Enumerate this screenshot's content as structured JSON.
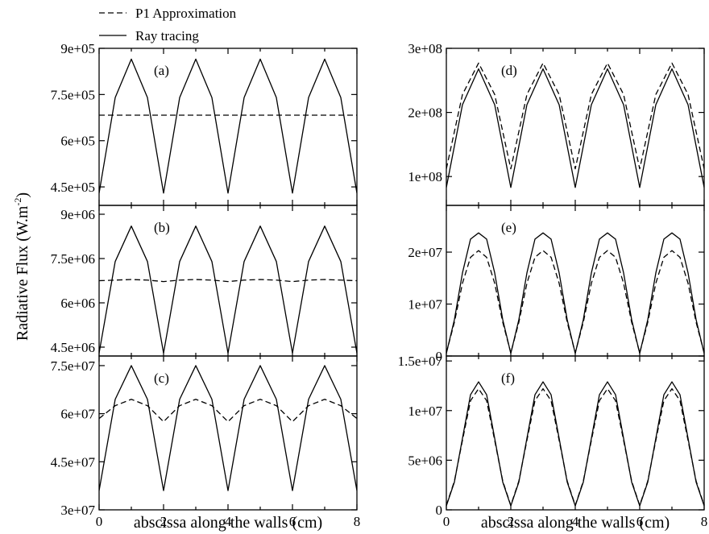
{
  "legend": [
    {
      "label": "P1 Approximation",
      "style": "dashed"
    },
    {
      "label": "Ray tracing",
      "style": "solid"
    }
  ],
  "ylabel": {
    "main": "Radiative Flux (W.m",
    "sup": "-2",
    "tail": ")"
  },
  "xlabel": "abscissa along the walls (cm)",
  "x_ticks": [
    "0",
    "2",
    "4",
    "6",
    "8"
  ],
  "chart_data": [
    {
      "id": "a",
      "type": "line",
      "panel_label": "(a)",
      "xlim": [
        0,
        8
      ],
      "ylim": [
        390000,
        900000
      ],
      "y_ticks": [
        {
          "v": 450000,
          "label": "4.5e+05"
        },
        {
          "v": 600000,
          "label": "6e+05"
        },
        {
          "v": 750000,
          "label": "7.5e+05"
        },
        {
          "v": 900000,
          "label": "9e+05"
        }
      ],
      "series": [
        {
          "name": "Ray tracing",
          "style": "solid",
          "x": [
            0,
            0.5,
            1,
            1.5,
            2,
            2.5,
            3,
            3.5,
            4,
            4.5,
            5,
            5.5,
            6,
            6.5,
            7,
            7.5,
            8
          ],
          "y": [
            430000,
            740000,
            865000,
            740000,
            430000,
            740000,
            865000,
            740000,
            430000,
            740000,
            865000,
            740000,
            430000,
            740000,
            865000,
            740000,
            430000
          ]
        },
        {
          "name": "P1 Approximation",
          "style": "dashed",
          "x": [
            0,
            8
          ],
          "y": [
            683000,
            683000
          ]
        }
      ]
    },
    {
      "id": "b",
      "type": "line",
      "panel_label": "(b)",
      "xlim": [
        0,
        8
      ],
      "ylim": [
        4200000,
        9300000
      ],
      "y_ticks": [
        {
          "v": 4500000,
          "label": "4.5e+06"
        },
        {
          "v": 6000000,
          "label": "6e+06"
        },
        {
          "v": 7500000,
          "label": "7.5e+06"
        },
        {
          "v": 9000000,
          "label": "9e+06"
        }
      ],
      "series": [
        {
          "name": "Ray tracing",
          "style": "solid",
          "x": [
            0,
            0.5,
            1,
            1.5,
            2,
            2.5,
            3,
            3.5,
            4,
            4.5,
            5,
            5.5,
            6,
            6.5,
            7,
            7.5,
            8
          ],
          "y": [
            4300000,
            7400000,
            8600000,
            7400000,
            4300000,
            7400000,
            8600000,
            7400000,
            4300000,
            7400000,
            8600000,
            7400000,
            4300000,
            7400000,
            8600000,
            7400000,
            4300000
          ]
        },
        {
          "name": "P1 Approximation",
          "style": "dashed",
          "x": [
            0,
            0.5,
            1,
            1.5,
            2,
            2.5,
            3,
            3.5,
            4,
            4.5,
            5,
            5.5,
            6,
            6.5,
            7,
            7.5,
            8
          ],
          "y": [
            6750000,
            6770000,
            6790000,
            6770000,
            6720000,
            6770000,
            6790000,
            6770000,
            6720000,
            6770000,
            6790000,
            6770000,
            6720000,
            6770000,
            6790000,
            6770000,
            6750000
          ]
        }
      ]
    },
    {
      "id": "c",
      "type": "line",
      "panel_label": "(c)",
      "xlim": [
        0,
        8
      ],
      "ylim": [
        30000000,
        78000000
      ],
      "y_ticks": [
        {
          "v": 30000000,
          "label": "3e+07"
        },
        {
          "v": 45000000,
          "label": "4.5e+07"
        },
        {
          "v": 60000000,
          "label": "6e+07"
        },
        {
          "v": 75000000,
          "label": "7.5e+07"
        }
      ],
      "series": [
        {
          "name": "Ray tracing",
          "style": "solid",
          "x": [
            0,
            0.5,
            1,
            1.5,
            2,
            2.5,
            3,
            3.5,
            4,
            4.5,
            5,
            5.5,
            6,
            6.5,
            7,
            7.5,
            8
          ],
          "y": [
            36000000,
            64500000,
            75000000,
            64500000,
            36000000,
            64500000,
            75000000,
            64500000,
            36000000,
            64500000,
            75000000,
            64500000,
            36000000,
            64500000,
            75000000,
            64500000,
            36000000
          ]
        },
        {
          "name": "P1 Approximation",
          "style": "dashed",
          "x": [
            0,
            0.5,
            1,
            1.5,
            2,
            2.5,
            3,
            3.5,
            4,
            4.5,
            5,
            5.5,
            6,
            6.5,
            7,
            7.5,
            8
          ],
          "y": [
            58500000,
            62500000,
            64500000,
            62500000,
            57500000,
            62500000,
            64500000,
            62500000,
            57500000,
            62500000,
            64500000,
            62500000,
            57500000,
            62500000,
            64500000,
            62500000,
            58500000
          ]
        }
      ]
    },
    {
      "id": "d",
      "type": "line",
      "panel_label": "(d)",
      "xlim": [
        0,
        8
      ],
      "ylim": [
        55000000,
        300000000
      ],
      "y_ticks": [
        {
          "v": 100000000,
          "label": "1e+08"
        },
        {
          "v": 200000000,
          "label": "2e+08"
        },
        {
          "v": 300000000,
          "label": "3e+08"
        }
      ],
      "series": [
        {
          "name": "Ray tracing",
          "style": "solid",
          "x": [
            0,
            0.5,
            1,
            1.5,
            2,
            2.5,
            3,
            3.5,
            4,
            4.5,
            5,
            5.5,
            6,
            6.5,
            7,
            7.5,
            8
          ],
          "y": [
            83000000,
            212000000,
            268000000,
            212000000,
            83000000,
            212000000,
            268000000,
            212000000,
            83000000,
            212000000,
            268000000,
            212000000,
            83000000,
            212000000,
            268000000,
            212000000,
            83000000
          ]
        },
        {
          "name": "P1 Approximation",
          "style": "dashed",
          "x": [
            0,
            0.5,
            1,
            1.5,
            2,
            2.5,
            3,
            3.5,
            4,
            4.5,
            5,
            5.5,
            6,
            6.5,
            7,
            7.5,
            8
          ],
          "y": [
            112000000,
            228000000,
            277000000,
            228000000,
            112000000,
            228000000,
            277000000,
            228000000,
            112000000,
            228000000,
            277000000,
            228000000,
            112000000,
            228000000,
            277000000,
            228000000,
            112000000
          ]
        }
      ]
    },
    {
      "id": "e",
      "type": "line",
      "panel_label": "(e)",
      "xlim": [
        0,
        8
      ],
      "ylim": [
        0,
        29000000
      ],
      "y_ticks": [
        {
          "v": 0,
          "label": "0"
        },
        {
          "v": 10000000,
          "label": "1e+07"
        },
        {
          "v": 20000000,
          "label": "2e+07"
        }
      ],
      "series": [
        {
          "name": "Ray tracing",
          "style": "solid",
          "x": [
            0,
            0.25,
            0.5,
            0.75,
            1,
            1.25,
            1.5,
            1.75,
            2,
            2.25,
            2.5,
            2.75,
            3,
            3.25,
            3.5,
            3.75,
            4,
            4.25,
            4.5,
            4.75,
            5,
            5.25,
            5.5,
            5.75,
            6,
            6.25,
            6.5,
            6.75,
            7,
            7.25,
            7.5,
            7.75,
            8
          ],
          "y": [
            500000,
            7000000,
            16000000,
            22500000,
            23700000,
            22500000,
            16000000,
            7000000,
            500000,
            7000000,
            16000000,
            22500000,
            23700000,
            22500000,
            16000000,
            7000000,
            500000,
            7000000,
            16000000,
            22500000,
            23700000,
            22500000,
            16000000,
            7000000,
            500000,
            7000000,
            16000000,
            22500000,
            23700000,
            22500000,
            16000000,
            7000000,
            500000
          ]
        },
        {
          "name": "P1 Approximation",
          "style": "dashed",
          "x": [
            0,
            0.25,
            0.5,
            0.75,
            1,
            1.25,
            1.5,
            1.75,
            2,
            2.25,
            2.5,
            2.75,
            3,
            3.25,
            3.5,
            3.75,
            4,
            4.25,
            4.5,
            4.75,
            5,
            5.25,
            5.5,
            5.75,
            6,
            6.25,
            6.5,
            6.75,
            7,
            7.25,
            7.5,
            7.75,
            8
          ],
          "y": [
            600000,
            6500000,
            14000000,
            19000000,
            20300000,
            19000000,
            14000000,
            6500000,
            600000,
            6500000,
            14000000,
            19000000,
            20300000,
            19000000,
            14000000,
            6500000,
            600000,
            6500000,
            14000000,
            19000000,
            20300000,
            19000000,
            14000000,
            6500000,
            600000,
            6500000,
            14000000,
            19000000,
            20300000,
            19000000,
            14000000,
            6500000,
            600000
          ]
        }
      ]
    },
    {
      "id": "f",
      "type": "line",
      "panel_label": "(f)",
      "xlim": [
        0,
        8
      ],
      "ylim": [
        0,
        15500000
      ],
      "y_ticks": [
        {
          "v": 0,
          "label": "0"
        },
        {
          "v": 5000000,
          "label": "5e+06"
        },
        {
          "v": 10000000,
          "label": "1e+07"
        },
        {
          "v": 15000000,
          "label": "1.5e+07"
        }
      ],
      "series": [
        {
          "name": "Ray tracing",
          "style": "solid",
          "x": [
            0,
            0.25,
            0.5,
            0.75,
            1,
            1.25,
            1.5,
            1.75,
            2,
            2.25,
            2.5,
            2.75,
            3,
            3.25,
            3.5,
            3.75,
            4,
            4.25,
            4.5,
            4.75,
            5,
            5.25,
            5.5,
            5.75,
            6,
            6.25,
            6.5,
            6.75,
            7,
            7.25,
            7.5,
            7.75,
            8
          ],
          "y": [
            400000,
            2800000,
            7200000,
            11600000,
            12900000,
            11600000,
            7200000,
            2800000,
            400000,
            2800000,
            7200000,
            11600000,
            12900000,
            11600000,
            7200000,
            2800000,
            400000,
            2800000,
            7200000,
            11600000,
            12900000,
            11600000,
            7200000,
            2800000,
            400000,
            2800000,
            7200000,
            11600000,
            12900000,
            11600000,
            7200000,
            2800000,
            400000
          ]
        },
        {
          "name": "P1 Approximation",
          "style": "dashed",
          "x": [
            0,
            0.25,
            0.5,
            0.75,
            1,
            1.25,
            1.5,
            1.75,
            2,
            2.25,
            2.5,
            2.75,
            3,
            3.25,
            3.5,
            3.75,
            4,
            4.25,
            4.5,
            4.75,
            5,
            5.25,
            5.5,
            5.75,
            6,
            6.25,
            6.5,
            6.75,
            7,
            7.25,
            7.5,
            7.75,
            8
          ],
          "y": [
            450000,
            2900000,
            7000000,
            11000000,
            12200000,
            11000000,
            7000000,
            2900000,
            450000,
            2900000,
            7000000,
            11000000,
            12200000,
            11000000,
            7000000,
            2900000,
            450000,
            2900000,
            7000000,
            11000000,
            12200000,
            11000000,
            7000000,
            2900000,
            450000,
            2900000,
            7000000,
            11000000,
            12200000,
            11000000,
            7000000,
            2900000,
            450000
          ]
        }
      ]
    }
  ]
}
